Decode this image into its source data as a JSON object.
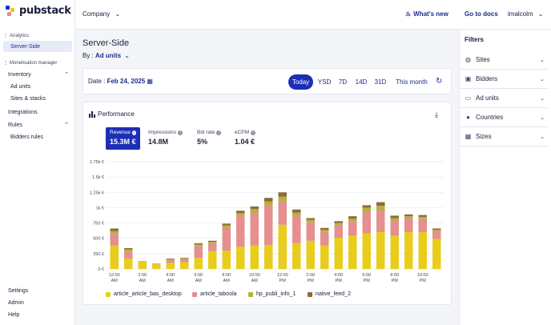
{
  "app": {
    "name": "pubstack",
    "badge": "SX"
  },
  "sidebar": {
    "analytics_label": "Analytics",
    "server_side": "Server-Side",
    "monetisation_label": "Monetisation manager",
    "inventory": "Inventory",
    "ad_units": "Ad units",
    "sites_stacks": "Sites & stacks",
    "integrations": "Integrations",
    "rules": "Rules",
    "bidders_rules": "Bidders rules",
    "settings": "Settings",
    "admin": "Admin",
    "help": "Help"
  },
  "topbar": {
    "company": "Company",
    "whats_new": "What's new",
    "go_to_docs": "Go to docs",
    "user": "imalcolm"
  },
  "main": {
    "title": "Server-Side",
    "groupby_prefix": "By :",
    "groupby_value": "Ad units",
    "date_prefix": "Date :",
    "date_value": "Feb 24, 2025",
    "ranges": [
      "Today",
      "YSD",
      "7D",
      "14D",
      "31D",
      "This month"
    ],
    "active_range": "Today"
  },
  "performance": {
    "title": "Performance",
    "metrics": [
      {
        "label": "Revenue",
        "value": "15.3M €"
      },
      {
        "label": "Impressions",
        "value": "14.8M"
      },
      {
        "label": "Bid rate",
        "value": "5%"
      },
      {
        "label": "eCPM",
        "value": "1.04 €"
      }
    ],
    "active_metric": "Revenue"
  },
  "chart_data": {
    "type": "bar",
    "stacked": true,
    "ylim": [
      0,
      1750
    ],
    "yticks": [
      "0 €",
      "250 €",
      "500 €",
      "750 €",
      "1k €",
      "1.25k €",
      "1.5k €",
      "1.75k €"
    ],
    "ytick_values": [
      0,
      250,
      500,
      750,
      1000,
      1250,
      1500,
      1750
    ],
    "xtick_labels": [
      [
        "12:00",
        "AM"
      ],
      [
        "2:00",
        "AM"
      ],
      [
        "4:00",
        "AM"
      ],
      [
        "6:00",
        "AM"
      ],
      [
        "8:00",
        "AM"
      ],
      [
        "10:00",
        "AM"
      ],
      [
        "12:00",
        "PM"
      ],
      [
        "2:00",
        "PM"
      ],
      [
        "4:00",
        "PM"
      ],
      [
        "6:00",
        "PM"
      ],
      [
        "8:00",
        "PM"
      ],
      [
        "10:00",
        "PM"
      ]
    ],
    "categories": [
      "00h",
      "01h",
      "02h",
      "03h",
      "04h",
      "05h",
      "06h",
      "07h",
      "08h",
      "09h",
      "10h",
      "11h",
      "12h",
      "13h",
      "14h",
      "15h",
      "16h",
      "17h",
      "18h",
      "19h",
      "20h",
      "21h",
      "22h",
      "23h"
    ],
    "series": [
      {
        "name": "article_article_bas_desktop",
        "color": "#e8cd1c",
        "values": [
          380,
          170,
          120,
          80,
          100,
          110,
          180,
          290,
          300,
          360,
          380,
          390,
          720,
          420,
          460,
          380,
          510,
          540,
          580,
          600,
          540,
          600,
          600,
          490
        ]
      },
      {
        "name": "article_taboola",
        "color": "#e58f8f",
        "values": [
          190,
          120,
          10,
          10,
          40,
          40,
          190,
          130,
          380,
          510,
          540,
          650,
          380,
          450,
          300,
          230,
          210,
          240,
          360,
          360,
          250,
          230,
          220,
          130
        ]
      },
      {
        "name": "hp_publi_info_1",
        "color": "#b3b23a",
        "values": [
          50,
          30,
          0,
          0,
          20,
          20,
          30,
          20,
          30,
          40,
          60,
          60,
          80,
          50,
          40,
          30,
          30,
          40,
          60,
          70,
          40,
          30,
          30,
          20
        ]
      },
      {
        "name": "native_feed_2",
        "color": "#8f6a3c",
        "values": [
          40,
          20,
          0,
          0,
          10,
          10,
          20,
          20,
          30,
          40,
          40,
          60,
          70,
          50,
          30,
          30,
          30,
          40,
          40,
          60,
          40,
          30,
          30,
          20
        ]
      }
    ],
    "legend_position": "bottom",
    "grid": true
  },
  "filters": {
    "title": "Filters",
    "items": [
      "Sites",
      "Bidders",
      "Ad units",
      "Countries",
      "Sizes"
    ]
  },
  "colors": {
    "accent": "#1d2fb5",
    "link": "#1d2a8c"
  }
}
